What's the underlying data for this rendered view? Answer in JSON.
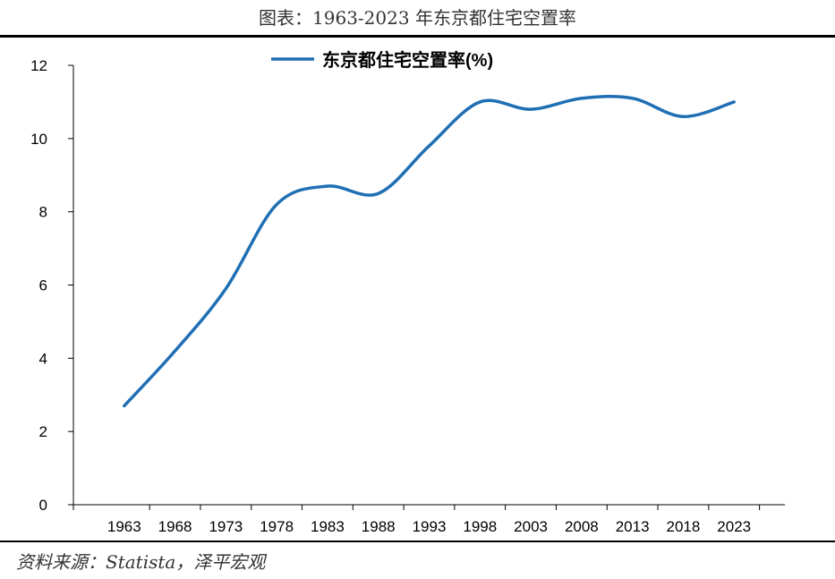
{
  "page_title": "图表：1963-2023 年东京都住宅空置率",
  "source_note": "资料来源：Statista，泽平宏观",
  "chart_data": {
    "type": "line",
    "x": [
      1963,
      1968,
      1973,
      1978,
      1983,
      1988,
      1993,
      1998,
      2003,
      2008,
      2013,
      2018,
      2023
    ],
    "series": [
      {
        "name": "东京都住宅空置率(%)",
        "color": "#1f6fb4",
        "values": [
          2.7,
          4.2,
          5.9,
          8.2,
          8.7,
          8.5,
          9.8,
          11.0,
          10.8,
          11.1,
          11.1,
          10.6,
          11.0
        ]
      }
    ],
    "xlim": [
      1958,
      2028
    ],
    "ylim": [
      0,
      12
    ],
    "yticks": [
      0,
      2,
      4,
      6,
      8,
      10,
      12
    ],
    "xticks": [
      1963,
      1968,
      1973,
      1978,
      1983,
      1988,
      1993,
      1998,
      2003,
      2008,
      2013,
      2018,
      2023
    ],
    "grid": false,
    "legend": "top-center"
  }
}
